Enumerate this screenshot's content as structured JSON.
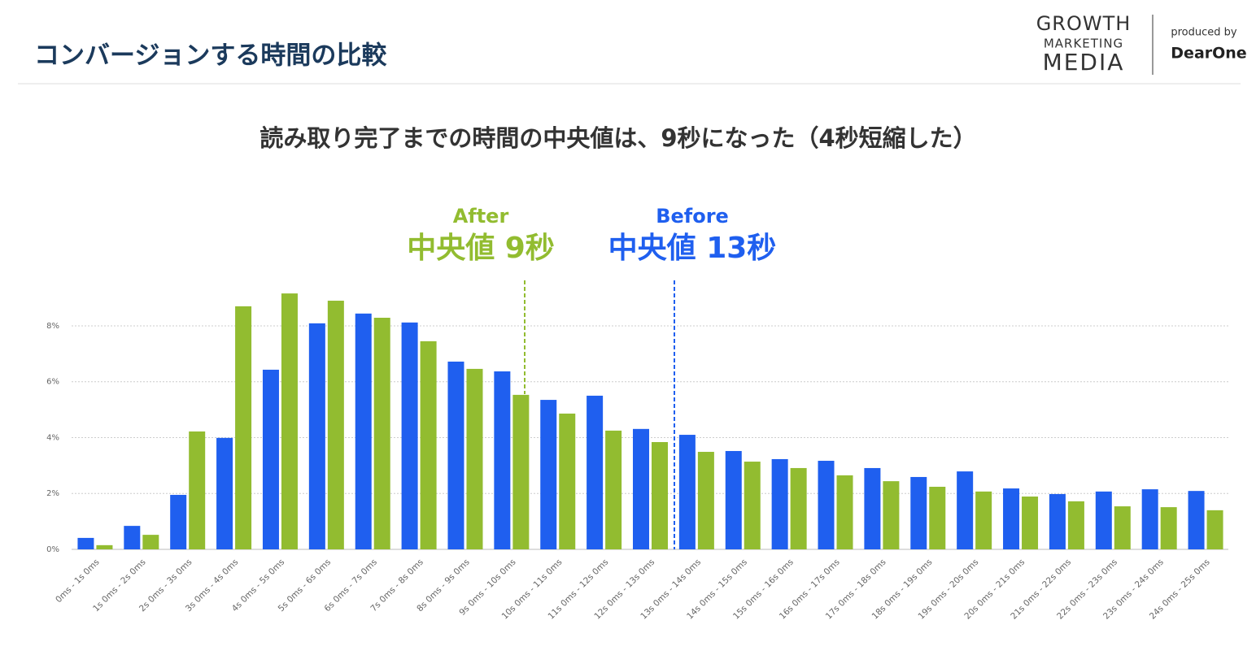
{
  "header": {
    "title": "コンバージョンする時間の比較",
    "logo": [
      "GROWTH",
      "MARKETING",
      "MEDIA"
    ],
    "produced_by": "produced by",
    "brand": "DearOne"
  },
  "chart_data": {
    "type": "bar",
    "title": "読み取り完了までの時間の中央値は、9秒になった（4秒短縮した）",
    "categories": [
      "0ms - 1s 0ms",
      "1s 0ms - 2s 0ms",
      "2s 0ms - 3s 0ms",
      "3s 0ms - 4s 0ms",
      "4s 0ms - 5s 0ms",
      "5s 0ms - 6s 0ms",
      "6s 0ms - 7s 0ms",
      "7s 0ms - 8s 0ms",
      "8s 0ms - 9s 0ms",
      "9s 0ms - 10s 0ms",
      "10s 0ms - 11s 0ms",
      "11s 0ms - 12s 0ms",
      "12s 0ms - 13s 0ms",
      "13s 0ms - 14s 0ms",
      "14s 0ms - 15s 0ms",
      "15s 0ms - 16s 0ms",
      "16s 0ms - 17s 0ms",
      "17s 0ms - 18s 0ms",
      "18s 0ms - 19s 0ms",
      "19s 0ms - 20s 0ms",
      "20s 0ms - 21s 0ms",
      "21s 0ms - 22s 0ms",
      "22s 0ms - 23s 0ms",
      "23s 0ms - 24s 0ms",
      "24s 0ms - 25s 0ms"
    ],
    "series": [
      {
        "name": "Before",
        "color": "#1f5fef",
        "values": [
          0.41,
          0.84,
          1.95,
          3.99,
          6.43,
          8.09,
          8.44,
          8.12,
          6.72,
          6.37,
          5.35,
          5.5,
          4.31,
          4.1,
          3.52,
          3.23,
          3.17,
          2.91,
          2.59,
          2.79,
          2.18,
          1.98,
          2.07,
          2.15,
          2.09
        ]
      },
      {
        "name": "After",
        "color": "#92bc30",
        "values": [
          0.15,
          0.52,
          4.22,
          8.7,
          9.16,
          8.9,
          8.29,
          7.45,
          6.46,
          5.53,
          4.86,
          4.25,
          3.84,
          3.49,
          3.14,
          2.91,
          2.65,
          2.44,
          2.24,
          2.07,
          1.89,
          1.72,
          1.54,
          1.51,
          1.4
        ]
      }
    ],
    "annotations": [
      "中央値 13秒",
      "中央値 9秒"
    ],
    "ylim": [
      0,
      9.5
    ],
    "yticks": [
      {
        "value": 0,
        "label": "0%"
      },
      {
        "value": 2,
        "label": "2%"
      },
      {
        "value": 4,
        "label": "4%"
      },
      {
        "value": 6,
        "label": "6%"
      },
      {
        "value": 8,
        "label": "8%"
      }
    ],
    "grid": true
  }
}
